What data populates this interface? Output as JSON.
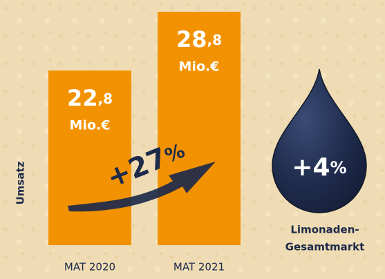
{
  "chart_data": {
    "type": "bar",
    "categories": [
      "MAT 2020",
      "MAT 2021"
    ],
    "values": [
      22.8,
      28.8
    ],
    "value_labels": [
      "22,8",
      "28,8"
    ],
    "unit": "Mio.€",
    "color": "#f39200",
    "ylim": [
      5,
      30
    ],
    "y_label": "Umsatz",
    "growth_label": "+27%",
    "market": {
      "value_label": "+4%",
      "label_lines": [
        "Limonaden-",
        "Gesamtmarkt"
      ]
    }
  }
}
